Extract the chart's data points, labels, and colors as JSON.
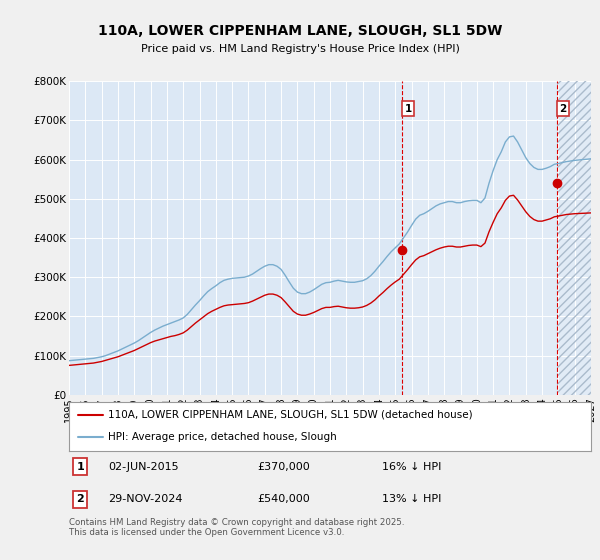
{
  "title": "110A, LOWER CIPPENHAM LANE, SLOUGH, SL1 5DW",
  "subtitle": "Price paid vs. HM Land Registry's House Price Index (HPI)",
  "bg_color": "#f0f0f0",
  "plot_bg_color": "#dce8f5",
  "hatch_bg_color": "#c8d8ea",
  "grid_color": "#ffffff",
  "ylim": [
    0,
    800000
  ],
  "yticks": [
    0,
    100000,
    200000,
    300000,
    400000,
    500000,
    600000,
    700000,
    800000
  ],
  "ytick_labels": [
    "£0",
    "£100K",
    "£200K",
    "£300K",
    "£400K",
    "£500K",
    "£600K",
    "£700K",
    "£800K"
  ],
  "xlim_start": 1995.0,
  "xlim_end": 2027.0,
  "sale1_date": 2015.42,
  "sale1_price": 370000,
  "sale2_date": 2024.92,
  "sale2_price": 540000,
  "legend_line1": "110A, LOWER CIPPENHAM LANE, SLOUGH, SL1 5DW (detached house)",
  "legend_line2": "HPI: Average price, detached house, Slough",
  "footnote": "Contains HM Land Registry data © Crown copyright and database right 2025.\nThis data is licensed under the Open Government Licence v3.0.",
  "line_red": "#cc0000",
  "line_blue": "#7aadce",
  "vline_color": "#dd0000",
  "hpi_data_x": [
    1995.0,
    1995.25,
    1995.5,
    1995.75,
    1996.0,
    1996.25,
    1996.5,
    1996.75,
    1997.0,
    1997.25,
    1997.5,
    1997.75,
    1998.0,
    1998.25,
    1998.5,
    1998.75,
    1999.0,
    1999.25,
    1999.5,
    1999.75,
    2000.0,
    2000.25,
    2000.5,
    2000.75,
    2001.0,
    2001.25,
    2001.5,
    2001.75,
    2002.0,
    2002.25,
    2002.5,
    2002.75,
    2003.0,
    2003.25,
    2003.5,
    2003.75,
    2004.0,
    2004.25,
    2004.5,
    2004.75,
    2005.0,
    2005.25,
    2005.5,
    2005.75,
    2006.0,
    2006.25,
    2006.5,
    2006.75,
    2007.0,
    2007.25,
    2007.5,
    2007.75,
    2008.0,
    2008.25,
    2008.5,
    2008.75,
    2009.0,
    2009.25,
    2009.5,
    2009.75,
    2010.0,
    2010.25,
    2010.5,
    2010.75,
    2011.0,
    2011.25,
    2011.5,
    2011.75,
    2012.0,
    2012.25,
    2012.5,
    2012.75,
    2013.0,
    2013.25,
    2013.5,
    2013.75,
    2014.0,
    2014.25,
    2014.5,
    2014.75,
    2015.0,
    2015.25,
    2015.5,
    2015.75,
    2016.0,
    2016.25,
    2016.5,
    2016.75,
    2017.0,
    2017.25,
    2017.5,
    2017.75,
    2018.0,
    2018.25,
    2018.5,
    2018.75,
    2019.0,
    2019.25,
    2019.5,
    2019.75,
    2020.0,
    2020.25,
    2020.5,
    2020.75,
    2021.0,
    2021.25,
    2021.5,
    2021.75,
    2022.0,
    2022.25,
    2022.5,
    2022.75,
    2023.0,
    2023.25,
    2023.5,
    2023.75,
    2024.0,
    2024.25,
    2024.5,
    2024.75,
    2025.0,
    2025.5,
    2026.0,
    2026.5,
    2027.0
  ],
  "hpi_data_y": [
    87000,
    88000,
    89000,
    90000,
    91000,
    92000,
    93000,
    95000,
    97000,
    100000,
    104000,
    108000,
    112000,
    117000,
    122000,
    127000,
    132000,
    138000,
    145000,
    152000,
    159000,
    165000,
    170000,
    175000,
    179000,
    183000,
    187000,
    191000,
    196000,
    205000,
    217000,
    229000,
    240000,
    252000,
    263000,
    271000,
    278000,
    286000,
    292000,
    295000,
    297000,
    298000,
    299000,
    300000,
    303000,
    308000,
    315000,
    322000,
    328000,
    332000,
    332000,
    328000,
    320000,
    305000,
    288000,
    272000,
    262000,
    258000,
    258000,
    262000,
    268000,
    275000,
    282000,
    286000,
    287000,
    290000,
    292000,
    290000,
    288000,
    287000,
    287000,
    289000,
    291000,
    296000,
    304000,
    315000,
    328000,
    340000,
    353000,
    365000,
    375000,
    385000,
    400000,
    415000,
    432000,
    448000,
    458000,
    462000,
    468000,
    475000,
    482000,
    487000,
    490000,
    493000,
    493000,
    490000,
    490000,
    493000,
    495000,
    496000,
    496000,
    490000,
    502000,
    540000,
    572000,
    600000,
    620000,
    645000,
    658000,
    660000,
    645000,
    625000,
    605000,
    590000,
    580000,
    575000,
    575000,
    578000,
    582000,
    588000,
    590000,
    595000,
    598000,
    600000,
    602000
  ],
  "price_data_x": [
    1995.0,
    1995.25,
    1995.5,
    1995.75,
    1996.0,
    1996.25,
    1996.5,
    1996.75,
    1997.0,
    1997.25,
    1997.5,
    1997.75,
    1998.0,
    1998.25,
    1998.5,
    1998.75,
    1999.0,
    1999.25,
    1999.5,
    1999.75,
    2000.0,
    2000.25,
    2000.5,
    2000.75,
    2001.0,
    2001.25,
    2001.5,
    2001.75,
    2002.0,
    2002.25,
    2002.5,
    2002.75,
    2003.0,
    2003.25,
    2003.5,
    2003.75,
    2004.0,
    2004.25,
    2004.5,
    2004.75,
    2005.0,
    2005.25,
    2005.5,
    2005.75,
    2006.0,
    2006.25,
    2006.5,
    2006.75,
    2007.0,
    2007.25,
    2007.5,
    2007.75,
    2008.0,
    2008.25,
    2008.5,
    2008.75,
    2009.0,
    2009.25,
    2009.5,
    2009.75,
    2010.0,
    2010.25,
    2010.5,
    2010.75,
    2011.0,
    2011.25,
    2011.5,
    2011.75,
    2012.0,
    2012.25,
    2012.5,
    2012.75,
    2013.0,
    2013.25,
    2013.5,
    2013.75,
    2014.0,
    2014.25,
    2014.5,
    2014.75,
    2015.0,
    2015.25,
    2015.5,
    2015.75,
    2016.0,
    2016.25,
    2016.5,
    2016.75,
    2017.0,
    2017.25,
    2017.5,
    2017.75,
    2018.0,
    2018.25,
    2018.5,
    2018.75,
    2019.0,
    2019.25,
    2019.5,
    2019.75,
    2020.0,
    2020.25,
    2020.5,
    2020.75,
    2021.0,
    2021.25,
    2021.5,
    2021.75,
    2022.0,
    2022.25,
    2022.5,
    2022.75,
    2023.0,
    2023.25,
    2023.5,
    2023.75,
    2024.0,
    2024.25,
    2024.5,
    2024.75,
    2025.0,
    2025.5,
    2026.0,
    2026.5,
    2027.0
  ],
  "price_data_y": [
    75000,
    76000,
    77000,
    78000,
    79000,
    80000,
    81000,
    83000,
    85000,
    88000,
    91000,
    94000,
    97000,
    101000,
    105000,
    109000,
    113000,
    118000,
    123000,
    128000,
    133000,
    137000,
    140000,
    143000,
    146000,
    149000,
    151000,
    154000,
    158000,
    165000,
    174000,
    183000,
    191000,
    199000,
    207000,
    213000,
    218000,
    223000,
    227000,
    229000,
    230000,
    231000,
    232000,
    233000,
    235000,
    239000,
    244000,
    249000,
    254000,
    257000,
    257000,
    254000,
    248000,
    237000,
    225000,
    213000,
    206000,
    203000,
    203000,
    206000,
    210000,
    215000,
    220000,
    223000,
    223000,
    225000,
    226000,
    224000,
    222000,
    221000,
    221000,
    222000,
    224000,
    228000,
    234000,
    242000,
    252000,
    261000,
    271000,
    280000,
    288000,
    295000,
    307000,
    319000,
    332000,
    344000,
    352000,
    355000,
    360000,
    365000,
    370000,
    374000,
    377000,
    379000,
    379000,
    377000,
    377000,
    379000,
    381000,
    382000,
    382000,
    378000,
    387000,
    416000,
    440000,
    462000,
    477000,
    496000,
    507000,
    509000,
    497000,
    482000,
    467000,
    455000,
    447000,
    443000,
    443000,
    446000,
    449000,
    454000,
    456000,
    460000,
    462000,
    463000,
    464000
  ],
  "xticks": [
    1995,
    1996,
    1997,
    1998,
    1999,
    2000,
    2001,
    2002,
    2003,
    2004,
    2005,
    2006,
    2007,
    2008,
    2009,
    2010,
    2011,
    2012,
    2013,
    2014,
    2015,
    2016,
    2017,
    2018,
    2019,
    2020,
    2021,
    2022,
    2023,
    2024,
    2025,
    2026,
    2027
  ]
}
